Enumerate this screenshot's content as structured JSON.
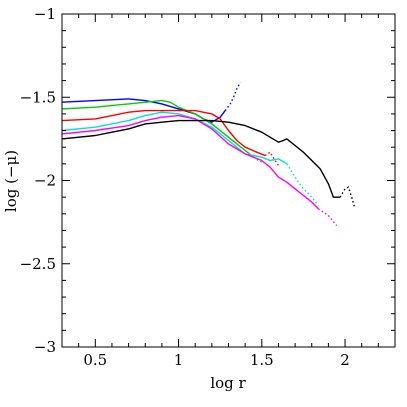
{
  "chart_data": {
    "type": "line",
    "title": "",
    "xlabel": "log r",
    "ylabel": "log (−μ)",
    "xlim": [
      0.3,
      2.3
    ],
    "ylim": [
      -3.0,
      -1.0
    ],
    "x_ticks": [
      0.5,
      1.0,
      1.5,
      2.0
    ],
    "x_tick_labels": [
      "0.5",
      "1",
      "1.5",
      "2"
    ],
    "y_ticks": [
      -3.0,
      -2.5,
      -2.0,
      -1.5,
      -1.0
    ],
    "y_tick_labels": [
      "−3",
      "−2.5",
      "−2",
      "−1.5",
      "−1"
    ],
    "grid": false,
    "series": [
      {
        "color": "#0000ff",
        "solid": [
          [
            0.3,
            -1.53
          ],
          [
            0.5,
            -1.52
          ],
          [
            0.7,
            -1.51
          ],
          [
            0.8,
            -1.52
          ],
          [
            0.9,
            -1.54
          ],
          [
            1.0,
            -1.57
          ],
          [
            1.1,
            -1.6
          ],
          [
            1.15,
            -1.63
          ],
          [
            1.2,
            -1.65
          ],
          [
            1.25,
            -1.62
          ],
          [
            1.28,
            -1.58
          ]
        ],
        "dotted": [
          [
            1.28,
            -1.58
          ],
          [
            1.31,
            -1.54
          ],
          [
            1.33,
            -1.5
          ],
          [
            1.35,
            -1.45
          ],
          [
            1.37,
            -1.41
          ]
        ]
      },
      {
        "color": "#00cc00",
        "solid": [
          [
            0.3,
            -1.57
          ],
          [
            0.5,
            -1.56
          ],
          [
            0.7,
            -1.54
          ],
          [
            0.8,
            -1.53
          ],
          [
            0.9,
            -1.52
          ],
          [
            0.95,
            -1.53
          ],
          [
            1.0,
            -1.56
          ],
          [
            1.1,
            -1.6
          ],
          [
            1.2,
            -1.66
          ],
          [
            1.3,
            -1.74
          ],
          [
            1.4,
            -1.82
          ],
          [
            1.45,
            -1.86
          ]
        ],
        "dotted": [
          [
            1.45,
            -1.86
          ],
          [
            1.48,
            -1.88
          ],
          [
            1.5,
            -1.89
          ]
        ]
      },
      {
        "color": "#ff0000",
        "solid": [
          [
            0.3,
            -1.64
          ],
          [
            0.5,
            -1.63
          ],
          [
            0.6,
            -1.61
          ],
          [
            0.7,
            -1.59
          ],
          [
            0.8,
            -1.58
          ],
          [
            0.9,
            -1.58
          ],
          [
            1.0,
            -1.58
          ],
          [
            1.1,
            -1.58
          ],
          [
            1.2,
            -1.6
          ],
          [
            1.25,
            -1.63
          ],
          [
            1.3,
            -1.7
          ],
          [
            1.35,
            -1.76
          ],
          [
            1.4,
            -1.8
          ],
          [
            1.47,
            -1.83
          ],
          [
            1.52,
            -1.85
          ]
        ],
        "dotted": [
          [
            1.52,
            -1.85
          ],
          [
            1.55,
            -1.83
          ],
          [
            1.58,
            -1.88
          ],
          [
            1.6,
            -1.91
          ]
        ]
      },
      {
        "color": "#00e0e0",
        "solid": [
          [
            0.3,
            -1.7
          ],
          [
            0.5,
            -1.68
          ],
          [
            0.7,
            -1.64
          ],
          [
            0.8,
            -1.61
          ],
          [
            0.9,
            -1.59
          ],
          [
            1.0,
            -1.6
          ],
          [
            1.1,
            -1.63
          ],
          [
            1.2,
            -1.68
          ],
          [
            1.3,
            -1.76
          ],
          [
            1.4,
            -1.84
          ],
          [
            1.5,
            -1.86
          ],
          [
            1.55,
            -1.88
          ],
          [
            1.6,
            -1.87
          ],
          [
            1.65,
            -1.9
          ]
        ],
        "dotted": [
          [
            1.65,
            -1.9
          ],
          [
            1.7,
            -1.98
          ],
          [
            1.75,
            -2.05
          ],
          [
            1.8,
            -2.1
          ],
          [
            1.84,
            -2.15
          ]
        ]
      },
      {
        "color": "#ff00ff",
        "solid": [
          [
            0.3,
            -1.72
          ],
          [
            0.5,
            -1.7
          ],
          [
            0.7,
            -1.67
          ],
          [
            0.8,
            -1.64
          ],
          [
            0.9,
            -1.62
          ],
          [
            1.0,
            -1.61
          ],
          [
            1.1,
            -1.63
          ],
          [
            1.2,
            -1.69
          ],
          [
            1.3,
            -1.78
          ],
          [
            1.4,
            -1.84
          ],
          [
            1.45,
            -1.86
          ],
          [
            1.5,
            -1.88
          ],
          [
            1.55,
            -1.92
          ],
          [
            1.6,
            -1.98
          ],
          [
            1.65,
            -2.01
          ],
          [
            1.7,
            -2.05
          ],
          [
            1.75,
            -2.09
          ],
          [
            1.8,
            -2.13
          ],
          [
            1.84,
            -2.17
          ]
        ],
        "dotted": [
          [
            1.84,
            -2.17
          ],
          [
            1.9,
            -2.21
          ],
          [
            1.95,
            -2.27
          ]
        ]
      },
      {
        "color": "#000000",
        "solid": [
          [
            0.3,
            -1.75
          ],
          [
            0.5,
            -1.73
          ],
          [
            0.6,
            -1.71
          ],
          [
            0.7,
            -1.69
          ],
          [
            0.8,
            -1.66
          ],
          [
            0.9,
            -1.65
          ],
          [
            1.0,
            -1.64
          ],
          [
            1.1,
            -1.64
          ],
          [
            1.2,
            -1.64
          ],
          [
            1.3,
            -1.65
          ],
          [
            1.4,
            -1.67
          ],
          [
            1.5,
            -1.71
          ],
          [
            1.55,
            -1.74
          ],
          [
            1.6,
            -1.77
          ],
          [
            1.63,
            -1.76
          ],
          [
            1.65,
            -1.75
          ],
          [
            1.7,
            -1.79
          ],
          [
            1.75,
            -1.83
          ],
          [
            1.8,
            -1.88
          ],
          [
            1.85,
            -1.93
          ],
          [
            1.9,
            -2.02
          ],
          [
            1.93,
            -2.1
          ],
          [
            1.97,
            -2.1
          ]
        ],
        "dotted": [
          [
            1.97,
            -2.1
          ],
          [
            2.0,
            -2.05
          ],
          [
            2.02,
            -2.04
          ],
          [
            2.04,
            -2.1
          ],
          [
            2.06,
            -2.17
          ]
        ]
      }
    ]
  }
}
